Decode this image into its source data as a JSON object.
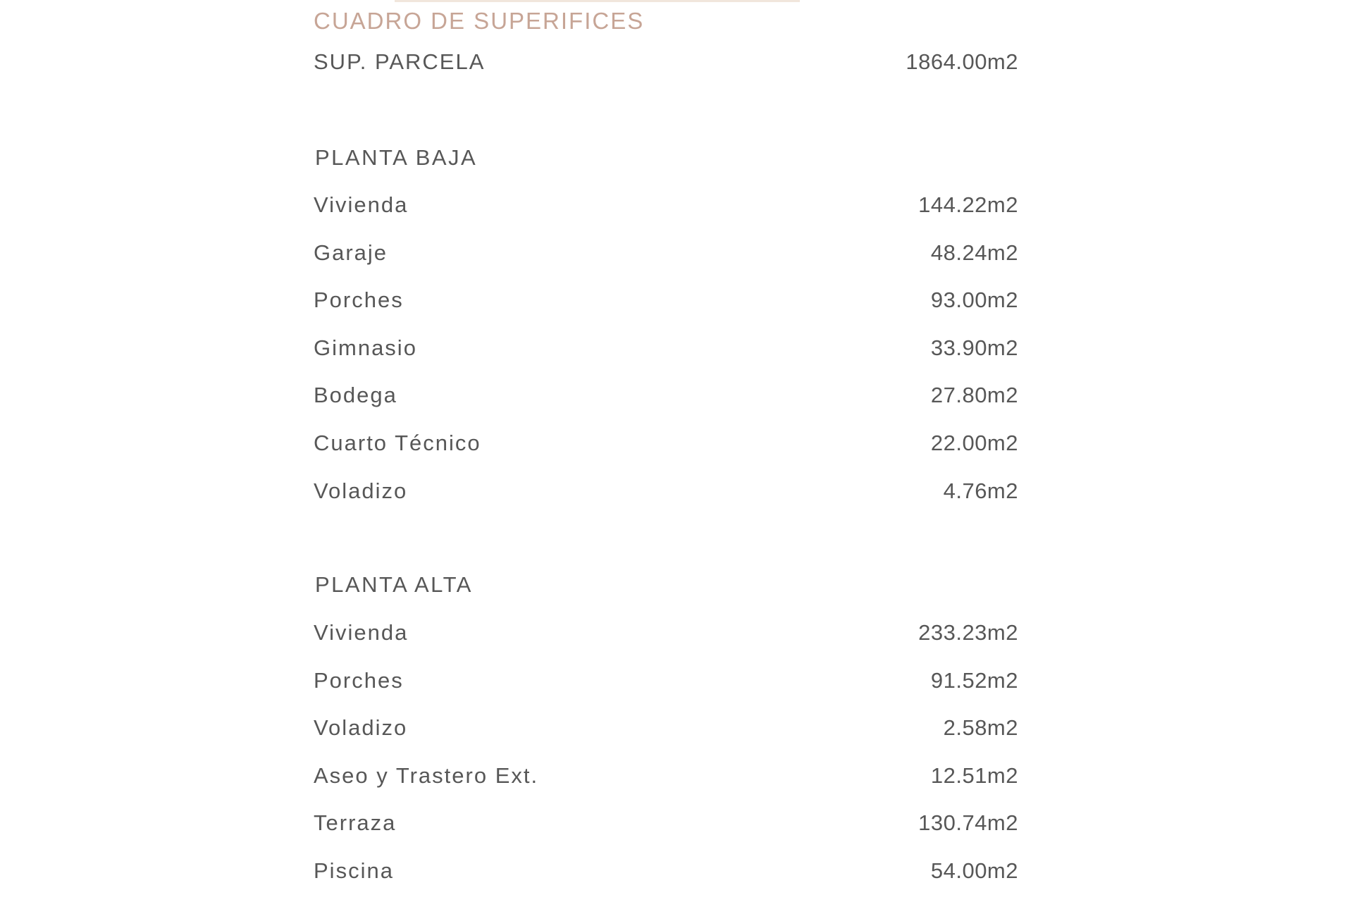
{
  "title": "CUADRO DE SUPERIFICES",
  "colors": {
    "title": "#c7a596",
    "text": "#575757"
  },
  "parcela": {
    "label": "SUP. PARCELA",
    "value": "1864.00m2"
  },
  "planta_baja": {
    "heading": "PLANTA BAJA",
    "rows": [
      {
        "label": "Vivienda",
        "value": "144.22m2"
      },
      {
        "label": "Garaje",
        "value": "48.24m2"
      },
      {
        "label": "Porches",
        "value": "93.00m2"
      },
      {
        "label": "Gimnasio",
        "value": "33.90m2"
      },
      {
        "label": "Bodega",
        "value": "27.80m2"
      },
      {
        "label": "Cuarto Técnico",
        "value": "22.00m2"
      },
      {
        "label": "Voladizo",
        "value": "4.76m2"
      }
    ]
  },
  "planta_alta": {
    "heading": "PLANTA ALTA",
    "rows": [
      {
        "label": "Vivienda",
        "value": "233.23m2"
      },
      {
        "label": "Porches",
        "value": "91.52m2"
      },
      {
        "label": "Voladizo",
        "value": "2.58m2"
      },
      {
        "label": "Aseo y Trastero Ext.",
        "value": "12.51m2"
      },
      {
        "label": "Terraza",
        "value": "130.74m2"
      },
      {
        "label": "Piscina",
        "value": "54.00m2"
      }
    ]
  }
}
